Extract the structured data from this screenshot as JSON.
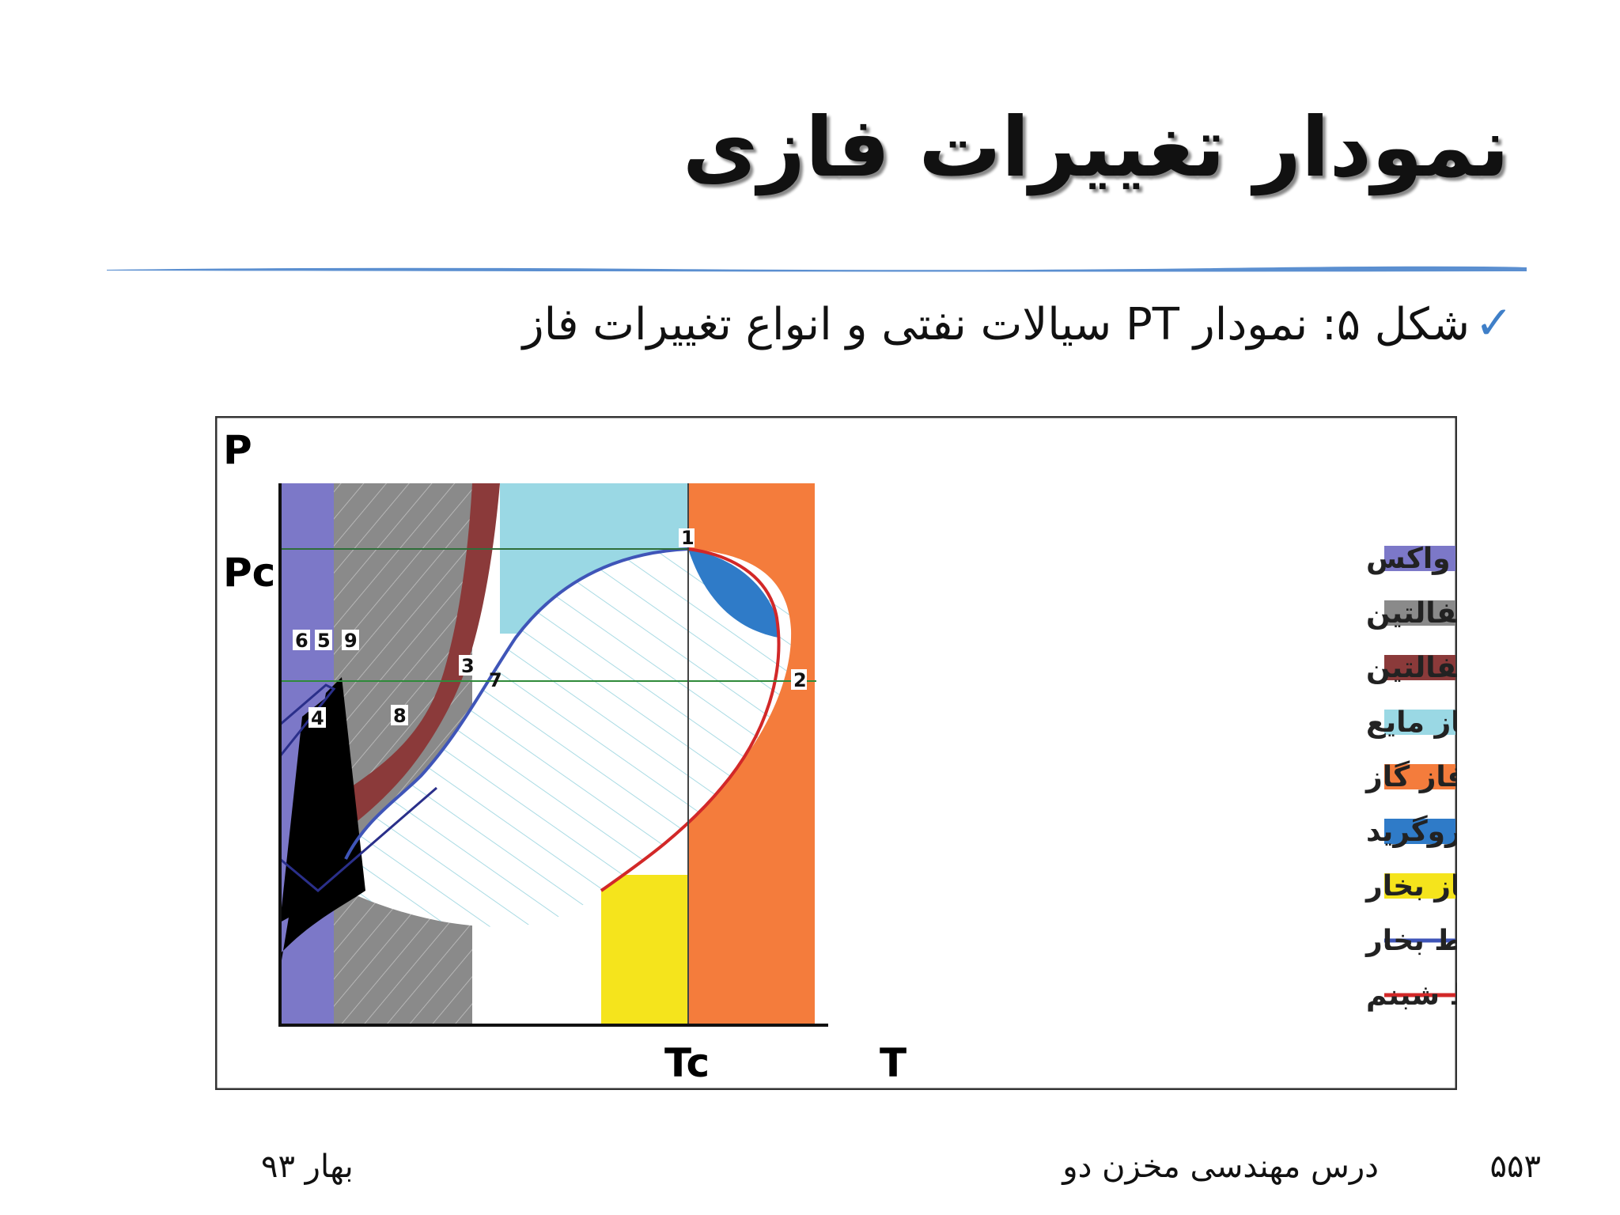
{
  "slide": {
    "title": "نمودار تغییرات فازی",
    "caption": "شکل ۵: نمودار PT سیالات نفتی و انواع تغییرات فاز",
    "footer": {
      "page": "۵۵۳",
      "course": "درس مهندسی مخزن دو",
      "term": "بهار ۹۳"
    },
    "check_icon": "checkmark-icon",
    "accent_color": "#5b8fd0"
  },
  "diagram": {
    "axis": {
      "y": "P",
      "y_crit": "Pc",
      "x": "T",
      "x_crit": "Tc"
    },
    "point_labels": [
      "1",
      "2",
      "3",
      "4",
      "5",
      "6",
      "7",
      "8",
      "9"
    ],
    "legend": [
      {
        "label": "ایجاد واکس",
        "color": "#7c78c8"
      },
      {
        "label": "ایجاد کلوییداستریکآسفالتین",
        "color": "#8a8a8a"
      },
      {
        "label": "رسوب آسفالتین",
        "color": "#8b3a3a"
      },
      {
        "label": "فاز مایع",
        "color": "#9ad8e4"
      },
      {
        "label": "فاز گاز",
        "color": "#f47c3c"
      },
      {
        "label": "میعاناترتروگرید",
        "color": "#2f7bc8"
      },
      {
        "label": "فاز بخار",
        "color": "#f5e41c"
      },
      {
        "label": "خط نقاط بخار",
        "color": "#3f55b8"
      },
      {
        "label": "خط نقاط شبنم",
        "color": "#d22828"
      }
    ]
  }
}
